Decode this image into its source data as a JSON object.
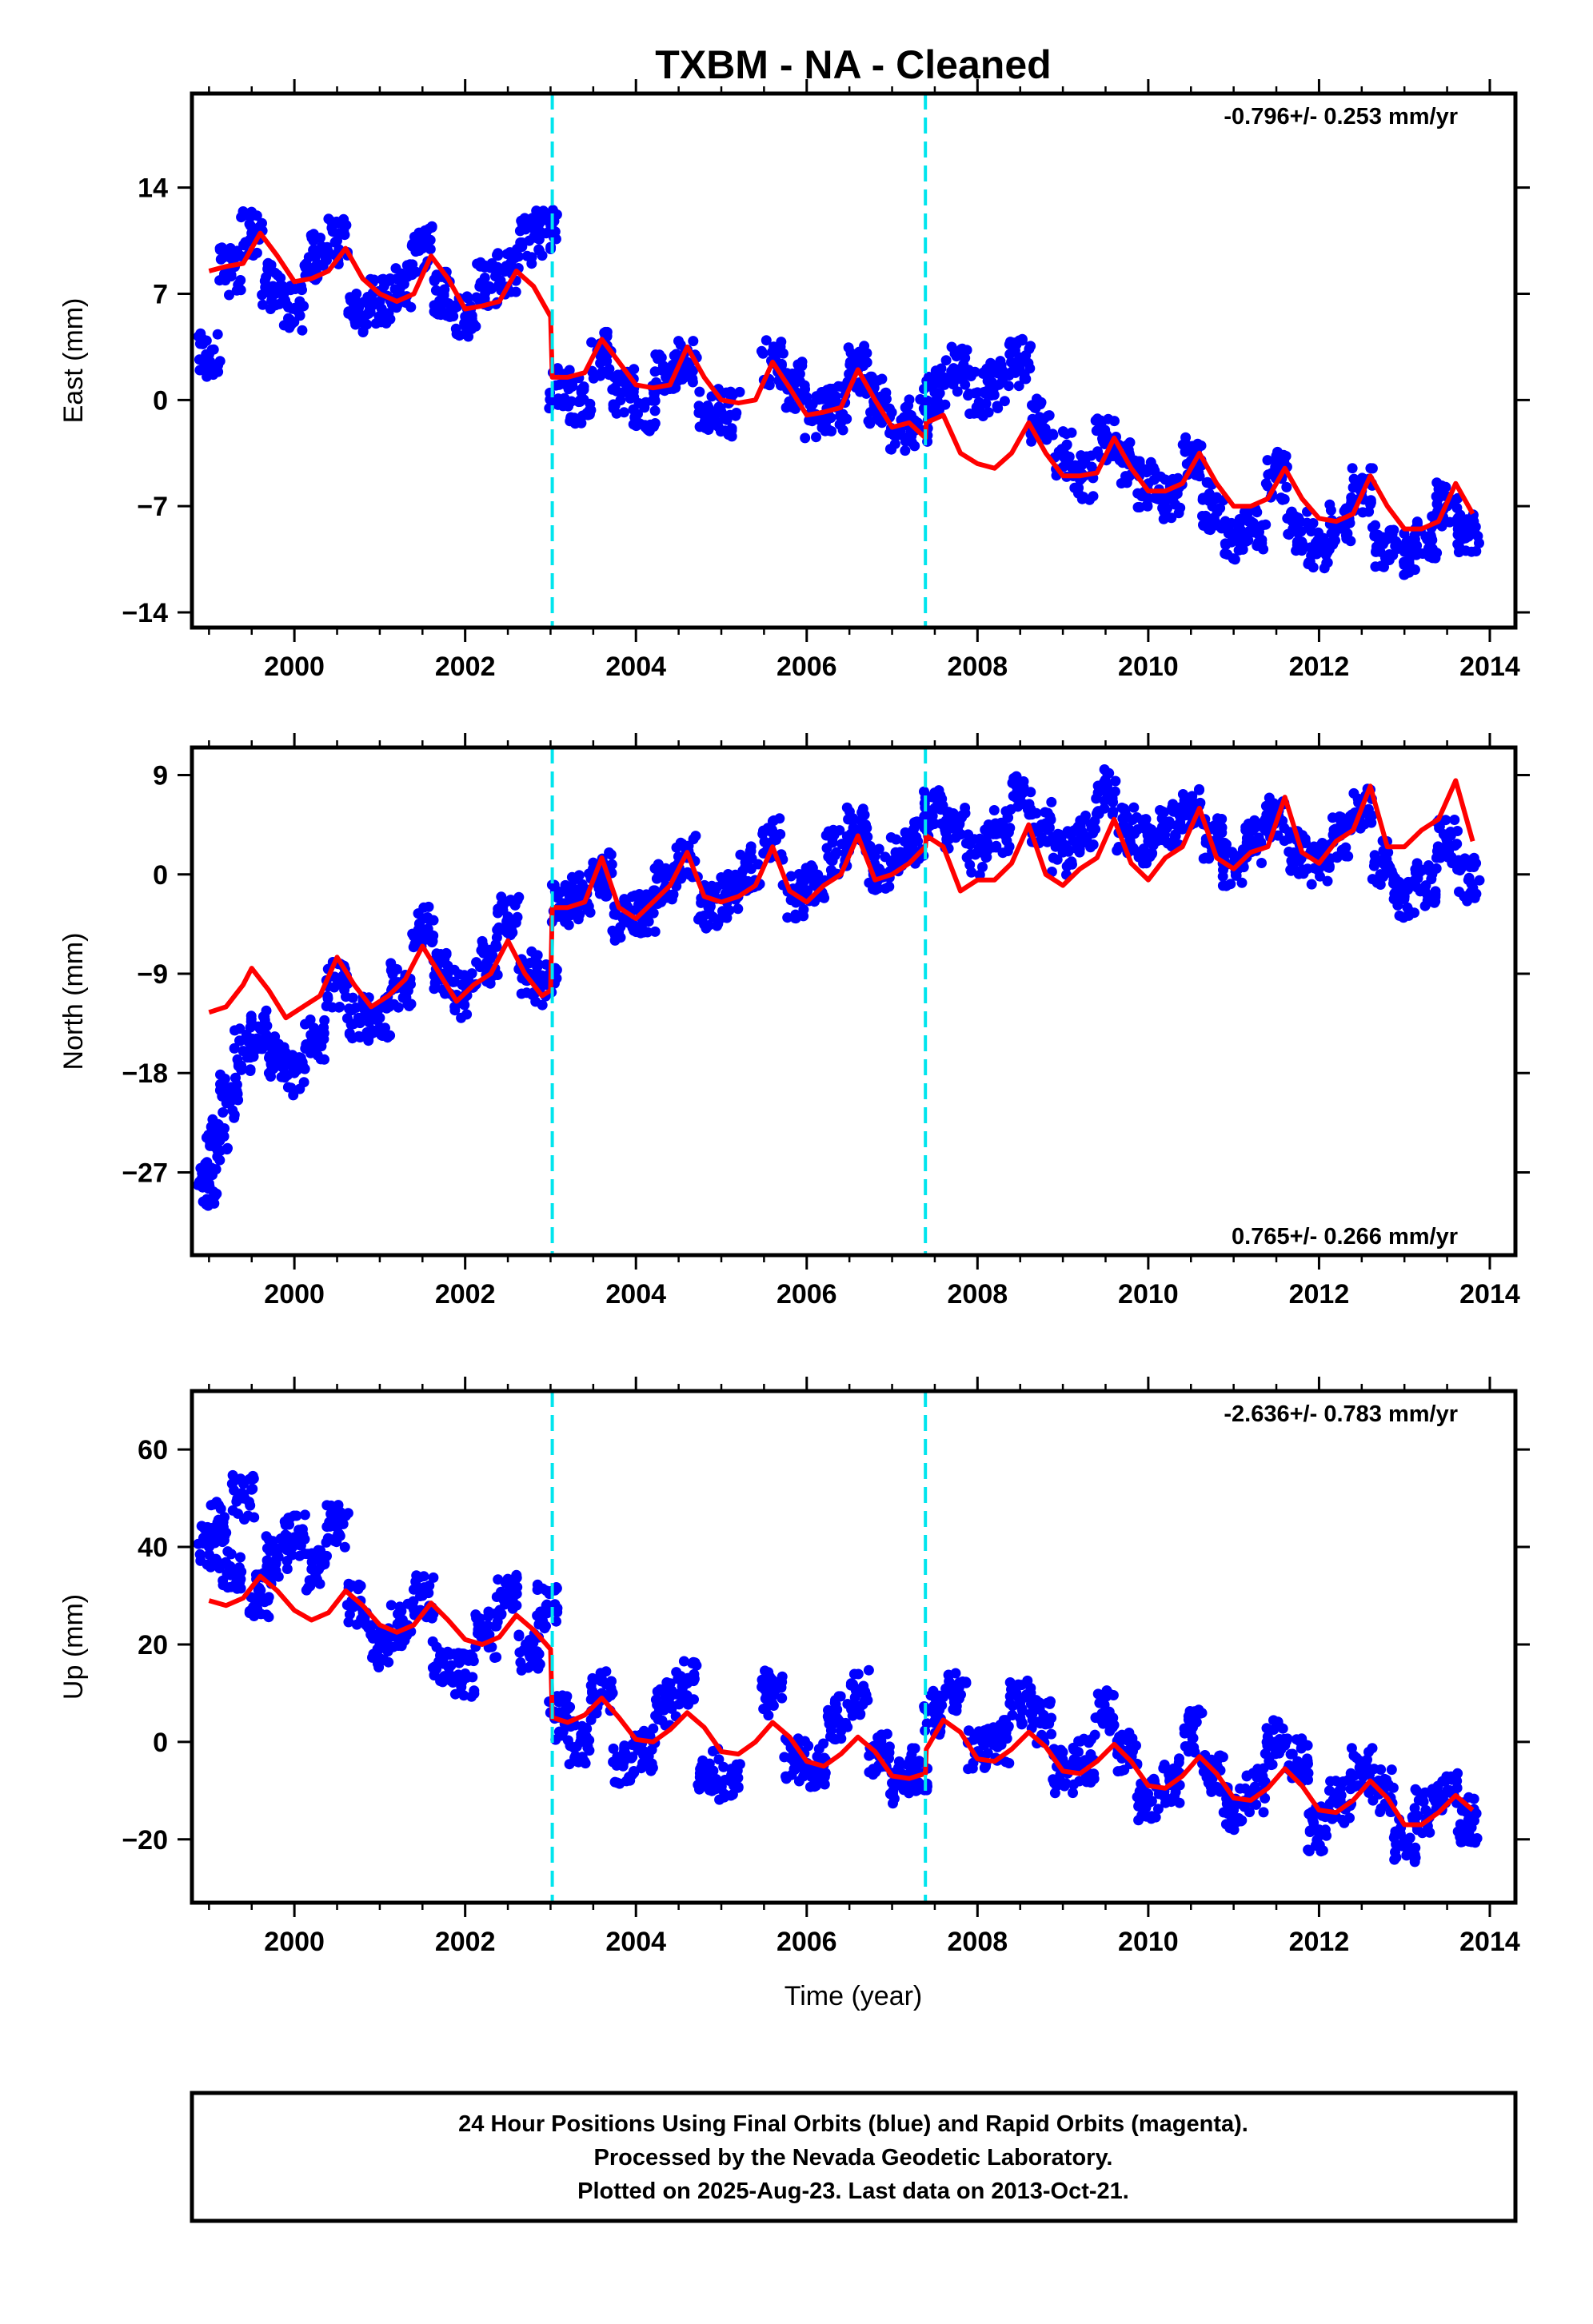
{
  "chart_title": "TXBM  - NA - Cleaned",
  "x_axis_label": "Time (year)",
  "footer": {
    "line1": "24 Hour Positions Using Final Orbits (blue) and Rapid Orbits (magenta).",
    "line2": "Processed by the Nevada Geodetic Laboratory.",
    "line3": "Plotted on 2025-Aug-23. Last data on 2013-Oct-21."
  },
  "colors": {
    "final_orbit_points": "#0000ff",
    "model_fit": "#ff0000",
    "equipment_change_lines": "#00e5ee",
    "frame": "#000000"
  },
  "chart_data": [
    {
      "type": "scatter",
      "panel": "east",
      "ylabel": "East (mm)",
      "xlabel": "",
      "rate_label": "-0.796+/- 0.253 mm/yr",
      "rate_position": "top-right",
      "x_ticks": [
        2000,
        2002,
        2004,
        2006,
        2008,
        2010,
        2012,
        2014
      ],
      "y_ticks": [
        -14,
        -7,
        0,
        7,
        14
      ],
      "xlim": [
        1998.8,
        2014.3
      ],
      "ylim": [
        -15.0,
        20.2
      ],
      "grid": false,
      "offsets_years": [
        2003.02,
        2007.39
      ],
      "series": [
        {
          "name": "Final Orbits",
          "kind": "points",
          "x": [
            1999.0,
            1999.25,
            1999.5,
            1999.75,
            2000.0,
            2000.25,
            2000.5,
            2000.75,
            2001.0,
            2001.25,
            2001.5,
            2001.75,
            2002.0,
            2002.25,
            2002.5,
            2002.75,
            2002.95,
            2003.1,
            2003.35,
            2003.6,
            2003.85,
            2004.1,
            2004.35,
            2004.6,
            2004.85,
            2005.1,
            2005.6,
            2005.85,
            2006.1,
            2006.35,
            2006.6,
            2006.85,
            2007.1,
            2007.3,
            2007.5,
            2007.75,
            2008.0,
            2008.25,
            2008.5,
            2008.75,
            2009.0,
            2009.25,
            2009.5,
            2009.75,
            2010.0,
            2010.25,
            2010.5,
            2010.75,
            2011.0,
            2011.25,
            2011.5,
            2011.75,
            2012.0,
            2012.25,
            2012.5,
            2012.75,
            2013.0,
            2013.25,
            2013.5,
            2013.75
          ],
          "y": [
            3.0,
            8.5,
            11.0,
            7.5,
            6.0,
            9.5,
            10.5,
            6.0,
            6.5,
            7.5,
            10.0,
            7.0,
            5.5,
            7.5,
            8.5,
            10.5,
            11.0,
            1.0,
            0.0,
            3.0,
            0.5,
            -0.5,
            1.5,
            2.5,
            -0.5,
            -1.0,
            2.5,
            1.0,
            -1.0,
            -0.5,
            2.0,
            0.0,
            -2.0,
            -1.5,
            0.5,
            2.0,
            0.5,
            1.0,
            2.5,
            -1.5,
            -3.5,
            -5.0,
            -2.5,
            -4.0,
            -5.5,
            -6.5,
            -4.0,
            -7.0,
            -9.0,
            -8.5,
            -5.0,
            -8.5,
            -9.5,
            -8.0,
            -6.0,
            -9.5,
            -10.0,
            -9.0,
            -7.0,
            -9.0
          ]
        },
        {
          "name": "Model",
          "kind": "line",
          "x": [
            1999.0,
            1999.2,
            1999.4,
            1999.6,
            1999.8,
            2000.0,
            2000.2,
            2000.4,
            2000.6,
            2000.8,
            2001.0,
            2001.2,
            2001.4,
            2001.6,
            2001.8,
            2002.0,
            2002.2,
            2002.4,
            2002.6,
            2002.8,
            2003.0,
            2003.02,
            2003.2,
            2003.4,
            2003.6,
            2003.8,
            2004.0,
            2004.2,
            2004.4,
            2004.6,
            2004.8,
            2005.0,
            2005.2,
            2005.4,
            2005.6,
            2005.8,
            2006.0,
            2006.2,
            2006.4,
            2006.6,
            2006.8,
            2007.0,
            2007.2,
            2007.39,
            2007.4,
            2007.6,
            2007.8,
            2008.0,
            2008.2,
            2008.4,
            2008.6,
            2008.8,
            2009.0,
            2009.2,
            2009.4,
            2009.6,
            2009.8,
            2010.0,
            2010.2,
            2010.4,
            2010.6,
            2010.8,
            2011.0,
            2011.2,
            2011.4,
            2011.6,
            2011.8,
            2012.0,
            2012.2,
            2012.4,
            2012.6,
            2012.8,
            2013.0,
            2013.2,
            2013.4,
            2013.6,
            2013.8
          ],
          "y": [
            8.5,
            8.8,
            9.0,
            11.0,
            9.5,
            7.8,
            8.0,
            8.5,
            10.0,
            8.0,
            7.0,
            6.5,
            7.0,
            9.5,
            8.0,
            6.0,
            6.2,
            6.5,
            8.5,
            7.5,
            5.5,
            1.5,
            1.5,
            1.8,
            4.0,
            2.5,
            1.0,
            0.8,
            1.0,
            3.5,
            1.5,
            0.0,
            -0.2,
            0.0,
            2.5,
            0.8,
            -1.0,
            -0.8,
            -0.5,
            2.0,
            0.0,
            -1.8,
            -1.5,
            -2.5,
            -1.5,
            -1.0,
            -3.5,
            -4.2,
            -4.5,
            -3.5,
            -1.5,
            -3.5,
            -5.0,
            -5.0,
            -4.8,
            -2.5,
            -4.5,
            -6.0,
            -6.0,
            -5.5,
            -3.5,
            -5.5,
            -7.0,
            -7.0,
            -6.5,
            -4.5,
            -6.5,
            -7.8,
            -8.0,
            -7.5,
            -5.0,
            -7.0,
            -8.5,
            -8.5,
            -8.0,
            -5.5,
            -7.5
          ]
        }
      ]
    },
    {
      "type": "scatter",
      "panel": "north",
      "ylabel": "North (mm)",
      "xlabel": "",
      "rate_label": "0.765+/- 0.266 mm/yr",
      "rate_position": "bottom-right",
      "x_ticks": [
        2000,
        2002,
        2004,
        2006,
        2008,
        2010,
        2012,
        2014
      ],
      "y_ticks": [
        -27,
        -18,
        -9,
        0,
        9
      ],
      "xlim": [
        1998.8,
        2014.3
      ],
      "ylim": [
        -34.5,
        11.5
      ],
      "grid": false,
      "offsets_years": [
        2003.02,
        2007.39
      ],
      "series": [
        {
          "name": "Final Orbits",
          "kind": "points",
          "x": [
            1999.0,
            1999.1,
            1999.25,
            1999.4,
            1999.6,
            1999.8,
            2000.0,
            2000.25,
            2000.5,
            2000.75,
            2001.0,
            2001.25,
            2001.5,
            2001.75,
            2002.0,
            2002.25,
            2002.5,
            2002.75,
            2002.95,
            2003.1,
            2003.35,
            2003.6,
            2003.85,
            2004.1,
            2004.35,
            2004.6,
            2004.85,
            2005.1,
            2005.35,
            2005.6,
            2005.85,
            2006.1,
            2006.35,
            2006.6,
            2006.85,
            2007.1,
            2007.3,
            2007.5,
            2007.75,
            2008.0,
            2008.25,
            2008.5,
            2008.75,
            2009.0,
            2009.25,
            2009.5,
            2009.75,
            2010.0,
            2010.25,
            2010.5,
            2010.75,
            2011.0,
            2011.25,
            2011.5,
            2011.75,
            2012.0,
            2012.25,
            2012.5,
            2012.75,
            2013.0,
            2013.25,
            2013.5,
            2013.75
          ],
          "y": [
            -28.0,
            -24.0,
            -20.0,
            -16.0,
            -14.0,
            -16.5,
            -18.0,
            -15.0,
            -10.0,
            -13.0,
            -13.0,
            -10.0,
            -5.0,
            -9.0,
            -11.0,
            -8.0,
            -4.0,
            -9.0,
            -10.0,
            -3.0,
            -2.0,
            0.0,
            -4.0,
            -3.5,
            -1.0,
            1.5,
            -3.0,
            -2.0,
            0.5,
            3.0,
            -2.0,
            -1.0,
            2.0,
            4.0,
            0.5,
            2.0,
            3.0,
            6.0,
            4.0,
            2.0,
            4.0,
            7.0,
            4.5,
            2.0,
            3.5,
            7.5,
            4.0,
            3.0,
            4.5,
            6.0,
            3.0,
            1.0,
            3.0,
            5.0,
            2.0,
            1.0,
            3.5,
            6.0,
            1.0,
            -2.0,
            -1.0,
            3.0,
            -0.5
          ]
        },
        {
          "name": "Model",
          "kind": "line",
          "x": [
            1999.0,
            1999.2,
            1999.4,
            1999.5,
            1999.7,
            1999.9,
            2000.1,
            2000.3,
            2000.5,
            2000.7,
            2000.9,
            2001.1,
            2001.3,
            2001.5,
            2001.7,
            2001.9,
            2002.1,
            2002.3,
            2002.5,
            2002.7,
            2002.9,
            2003.0,
            2003.02,
            2003.2,
            2003.4,
            2003.6,
            2003.8,
            2004.0,
            2004.2,
            2004.4,
            2004.6,
            2004.8,
            2005.0,
            2005.2,
            2005.4,
            2005.6,
            2005.8,
            2006.0,
            2006.2,
            2006.4,
            2006.6,
            2006.8,
            2007.0,
            2007.2,
            2007.39,
            2007.4,
            2007.6,
            2007.8,
            2008.0,
            2008.2,
            2008.4,
            2008.6,
            2008.8,
            2009.0,
            2009.2,
            2009.4,
            2009.6,
            2009.8,
            2010.0,
            2010.2,
            2010.4,
            2010.6,
            2010.8,
            2011.0,
            2011.2,
            2011.4,
            2011.6,
            2011.8,
            2012.0,
            2012.2,
            2012.4,
            2012.6,
            2012.8,
            2013.0,
            2013.2,
            2013.4,
            2013.6,
            2013.8
          ],
          "y": [
            -12.5,
            -12.0,
            -10.0,
            -8.5,
            -10.5,
            -13.0,
            -12.0,
            -11.0,
            -7.5,
            -10.0,
            -12.0,
            -11.0,
            -9.5,
            -6.5,
            -9.0,
            -11.5,
            -10.0,
            -9.0,
            -6.0,
            -9.0,
            -11.0,
            -10.5,
            -3.0,
            -3.0,
            -2.5,
            1.5,
            -3.0,
            -4.0,
            -2.5,
            -1.0,
            2.0,
            -2.0,
            -2.5,
            -2.0,
            -1.0,
            2.5,
            -1.5,
            -2.5,
            -1.0,
            0.0,
            3.5,
            -0.5,
            0.0,
            1.0,
            2.5,
            3.5,
            2.5,
            -1.5,
            -0.5,
            -0.5,
            1.0,
            4.5,
            0.0,
            -1.0,
            0.5,
            1.5,
            5.0,
            1.0,
            -0.5,
            1.5,
            2.5,
            6.0,
            1.5,
            0.5,
            2.0,
            2.5,
            7.0,
            2.0,
            1.0,
            3.0,
            4.0,
            8.0,
            2.5,
            2.5,
            4.0,
            5.0,
            8.5,
            3.0
          ]
        }
      ]
    },
    {
      "type": "scatter",
      "panel": "up",
      "ylabel": "Up (mm)",
      "xlabel": "Time (year)",
      "rate_label": "-2.636+/- 0.783 mm/yr",
      "rate_position": "top-right",
      "x_ticks": [
        2000,
        2002,
        2004,
        2006,
        2008,
        2010,
        2012,
        2014
      ],
      "y_ticks": [
        -20,
        0,
        20,
        40,
        60
      ],
      "xlim": [
        1998.8,
        2014.3
      ],
      "ylim": [
        -33,
        72
      ],
      "grid": false,
      "offsets_years": [
        2003.02,
        2007.39
      ],
      "series": [
        {
          "name": "Final Orbits",
          "kind": "points",
          "x": [
            1999.0,
            1999.1,
            1999.25,
            1999.4,
            1999.6,
            1999.8,
            2000.0,
            2000.25,
            2000.5,
            2000.75,
            2001.0,
            2001.25,
            2001.5,
            2001.75,
            2002.0,
            2002.25,
            2002.5,
            2002.75,
            2002.95,
            2003.1,
            2003.35,
            2003.6,
            2003.85,
            2004.1,
            2004.35,
            2004.6,
            2004.85,
            2005.1,
            2005.6,
            2005.85,
            2006.1,
            2006.35,
            2006.6,
            2006.85,
            2007.1,
            2007.3,
            2007.5,
            2007.75,
            2008.0,
            2008.25,
            2008.5,
            2008.75,
            2009.0,
            2009.25,
            2009.5,
            2009.75,
            2010.0,
            2010.25,
            2010.5,
            2010.75,
            2011.0,
            2011.25,
            2011.5,
            2011.75,
            2012.0,
            2012.25,
            2012.5,
            2012.75,
            2013.0,
            2013.25,
            2013.5,
            2013.75
          ],
          "y": [
            40.0,
            45.0,
            36.0,
            50.0,
            30.0,
            38.0,
            42.0,
            35.0,
            44.0,
            28.0,
            20.0,
            24.0,
            30.0,
            16.0,
            14.0,
            22.0,
            30.0,
            18.0,
            28.0,
            5.0,
            0.0,
            10.0,
            -5.0,
            -2.0,
            8.0,
            12.0,
            -6.0,
            -8.0,
            10.0,
            -4.0,
            -5.0,
            5.0,
            10.0,
            -3.0,
            -8.0,
            -6.0,
            6.0,
            10.0,
            -2.0,
            0.0,
            8.0,
            4.0,
            -6.0,
            -4.0,
            6.0,
            -2.0,
            -12.0,
            -8.0,
            2.0,
            -6.0,
            -14.0,
            -10.0,
            0.0,
            -4.0,
            -18.0,
            -12.0,
            -6.0,
            -10.0,
            -20.0,
            -14.0,
            -10.0,
            -16.0
          ]
        },
        {
          "name": "Model",
          "kind": "line",
          "x": [
            1999.0,
            1999.2,
            1999.4,
            1999.6,
            1999.8,
            2000.0,
            2000.2,
            2000.4,
            2000.6,
            2000.8,
            2001.0,
            2001.2,
            2001.4,
            2001.6,
            2001.8,
            2002.0,
            2002.2,
            2002.4,
            2002.6,
            2002.8,
            2003.0,
            2003.02,
            2003.2,
            2003.4,
            2003.6,
            2003.8,
            2004.0,
            2004.2,
            2004.4,
            2004.6,
            2004.8,
            2005.0,
            2005.2,
            2005.4,
            2005.6,
            2005.8,
            2006.0,
            2006.2,
            2006.4,
            2006.6,
            2006.8,
            2007.0,
            2007.2,
            2007.39,
            2007.4,
            2007.6,
            2007.8,
            2008.0,
            2008.2,
            2008.4,
            2008.6,
            2008.8,
            2009.0,
            2009.2,
            2009.4,
            2009.6,
            2009.8,
            2010.0,
            2010.2,
            2010.4,
            2010.6,
            2010.8,
            2011.0,
            2011.2,
            2011.4,
            2011.6,
            2011.8,
            2012.0,
            2012.2,
            2012.4,
            2012.6,
            2012.8,
            2013.0,
            2013.2,
            2013.4,
            2013.6,
            2013.8
          ],
          "y": [
            29.0,
            28.0,
            29.5,
            34.0,
            31.0,
            27.0,
            25.0,
            26.5,
            31.0,
            28.0,
            24.0,
            22.5,
            24.0,
            28.5,
            25.0,
            21.0,
            20.0,
            21.5,
            26.0,
            23.0,
            19.0,
            5.0,
            4.0,
            5.5,
            9.0,
            5.0,
            0.5,
            0.0,
            2.5,
            6.0,
            3.0,
            -2.0,
            -2.5,
            0.0,
            4.0,
            1.0,
            -4.0,
            -5.0,
            -2.5,
            1.0,
            -2.0,
            -7.0,
            -7.5,
            -6.5,
            -1.5,
            4.5,
            2.0,
            -3.5,
            -4.0,
            -1.5,
            2.0,
            -1.0,
            -6.0,
            -6.5,
            -4.0,
            -0.5,
            -4.0,
            -9.0,
            -9.5,
            -7.0,
            -3.0,
            -6.5,
            -11.5,
            -12.0,
            -9.5,
            -5.5,
            -9.0,
            -14.0,
            -14.5,
            -12.0,
            -8.0,
            -11.5,
            -17.0,
            -17.0,
            -14.5,
            -11.0,
            -14.0
          ]
        }
      ]
    }
  ]
}
